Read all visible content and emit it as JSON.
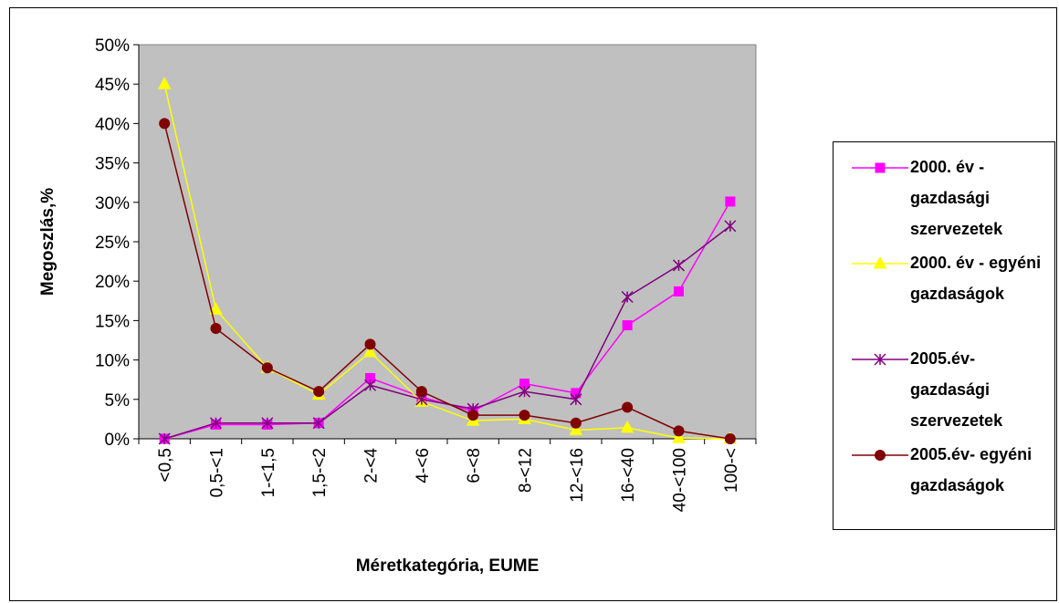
{
  "chart_data": {
    "type": "line",
    "y_label": "Megoszlás,%",
    "x_label": "Méretkategória, EUME",
    "categories": [
      "<0,5",
      "0,5-<1",
      "1-<1,5",
      "1,5-<2",
      "2-<4",
      "4-<6",
      "6-<8",
      "8-<12",
      "12-<16",
      "16-<40",
      "40-<100",
      "100-<"
    ],
    "ylim": [
      0,
      50
    ],
    "yticks": [
      {
        "value": 0,
        "label": "0%"
      },
      {
        "value": 5,
        "label": "5%"
      },
      {
        "value": 10,
        "label": "10%"
      },
      {
        "value": 15,
        "label": "15%"
      },
      {
        "value": 20,
        "label": "20%"
      },
      {
        "value": 25,
        "label": "25%"
      },
      {
        "value": 30,
        "label": "30%"
      },
      {
        "value": 35,
        "label": "35%"
      },
      {
        "value": 40,
        "label": "40%"
      },
      {
        "value": 45,
        "label": "45%"
      },
      {
        "value": 50,
        "label": "50%"
      }
    ],
    "plot_background": "#c0c0c0",
    "series": [
      {
        "name": "2000. év - gazdasági szervezetek",
        "color": "#ff00ff",
        "marker": "square",
        "values": [
          0,
          1.8,
          1.8,
          2,
          7.7,
          5.3,
          3.5,
          7,
          5.8,
          14.4,
          18.7,
          30.1
        ]
      },
      {
        "name": "2000. év - egyéni gazdaságok",
        "color": "#ffff00",
        "marker": "triangle",
        "values": [
          45,
          16.4,
          9,
          5.6,
          11,
          4.7,
          2.3,
          2.5,
          1.1,
          1.4,
          0.1,
          0
        ]
      },
      {
        "name": "2005.év- gazdasági szervezetek",
        "color": "#800080",
        "marker": "star",
        "values": [
          0,
          2,
          2,
          2,
          6.8,
          5,
          3.8,
          6,
          5,
          18,
          22,
          27
        ]
      },
      {
        "name": "2005.év- egyéni gazdaságok",
        "color": "#800000",
        "marker": "circle",
        "values": [
          40,
          14,
          9,
          6,
          12,
          6,
          3,
          3,
          2,
          4,
          1,
          0
        ]
      }
    ]
  }
}
